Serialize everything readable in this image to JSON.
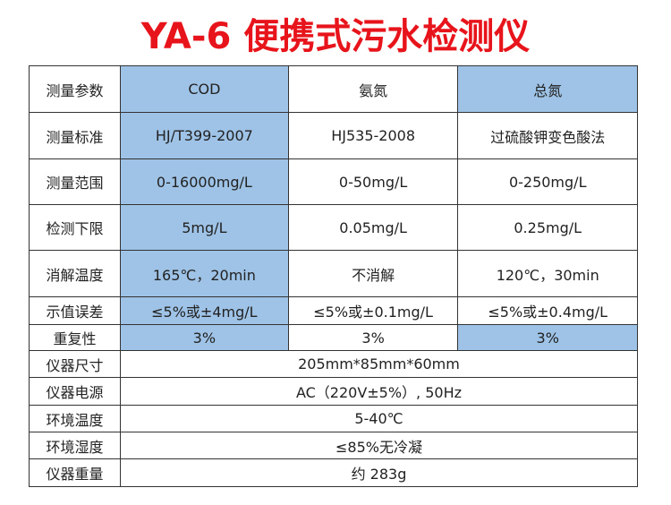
{
  "title": "YA-6  便携式污水检测仪",
  "table": {
    "rows": [
      [
        "测量参数",
        "COD",
        "氨氮",
        "总氮"
      ],
      [
        "测量标准",
        "HJ/T399-2007",
        "HJ535-2008",
        "过硫酸钾变色酸法"
      ],
      [
        "测量范围",
        "0-16000mg/L",
        "0-50mg/L",
        "0-250mg/L"
      ],
      [
        "检测下限",
        "5mg/L",
        "0.05mg/L",
        "0.25mg/L"
      ],
      [
        "消解温度",
        "165℃，20min",
        "不消解",
        "120℃，30min"
      ],
      [
        "示值误差",
        "≤5%或±4mg/L",
        "≤5%或±0.1mg/L",
        "≤5%或±0.4mg/L"
      ],
      [
        "重复性",
        "3%",
        "3%",
        "3%"
      ],
      [
        "仪器尺寸",
        "205mm*85mm*60mm"
      ],
      [
        "仪器电源",
        "AC（220V±5%）, 50Hz"
      ],
      [
        "环境温度",
        "5-40℃"
      ],
      [
        "环境湿度",
        "≤85%无冷凝"
      ],
      [
        "仪器重量",
        "约 283g"
      ]
    ]
  }
}
